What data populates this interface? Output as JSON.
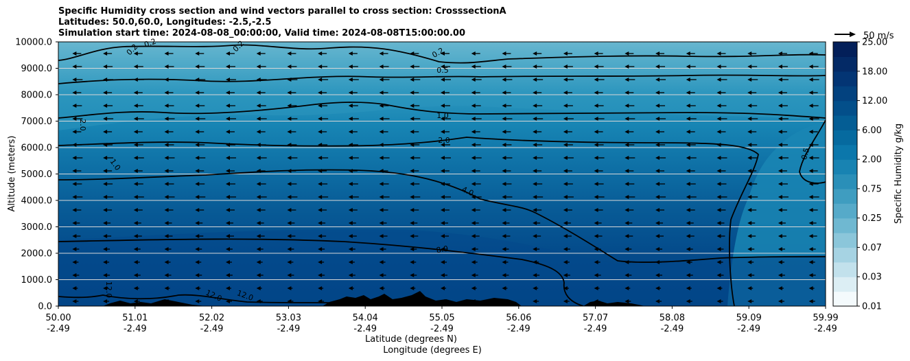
{
  "chart_data": {
    "type": "heatmap",
    "title_lines": [
      "Specific Humidity cross section and wind vectors parallel to cross section: CrosssectionA",
      "Latitudes: 50.0,60.0, Longitudes: -2.5,-2.5",
      "Simulation start time: 2024-08-08_00:00:00, Valid time: 2024-08-08T15:00:00.00"
    ],
    "xlabel_lat": "Latitude (degrees N)",
    "xlabel_lon": "Longitude (degrees E)",
    "ylabel": "Altitude (meters)",
    "colorbar_label": "Specific Humidity g/kg",
    "quiver_key_label": "50 m/s",
    "ylim": [
      0,
      10000
    ],
    "xlim": [
      50.0,
      59.99
    ],
    "y_ticks": [
      0,
      1000,
      2000,
      3000,
      4000,
      5000,
      6000,
      7000,
      8000,
      9000,
      10000
    ],
    "y_tick_labels": [
      "0.0",
      "1000.0",
      "2000.0",
      "3000.0",
      "4000.0",
      "5000.0",
      "6000.0",
      "7000.0",
      "8000.0",
      "9000.0",
      "10000.0"
    ],
    "x_ticks": [
      {
        "lat": "50.00",
        "lon": "-2.49"
      },
      {
        "lat": "51.01",
        "lon": "-2.49"
      },
      {
        "lat": "52.02",
        "lon": "-2.49"
      },
      {
        "lat": "53.03",
        "lon": "-2.49"
      },
      {
        "lat": "54.04",
        "lon": "-2.49"
      },
      {
        "lat": "55.05",
        "lon": "-2.49"
      },
      {
        "lat": "56.06",
        "lon": "-2.49"
      },
      {
        "lat": "57.07",
        "lon": "-2.49"
      },
      {
        "lat": "58.08",
        "lon": "-2.49"
      },
      {
        "lat": "59.09",
        "lon": "-2.49"
      },
      {
        "lat": "59.99",
        "lon": "-2.49"
      }
    ],
    "colorbar_levels": [
      0.01,
      0.02,
      0.03,
      0.05,
      0.07,
      0.1,
      0.25,
      0.5,
      0.75,
      1.0,
      2.0,
      4.0,
      6.0,
      8.0,
      12.0,
      15.0,
      18.0,
      21.0,
      25.0
    ],
    "colorbar_tick_labels": [
      "0.01",
      "0.03",
      "0.07",
      "0.25",
      "0.75",
      "2.00",
      "6.00",
      "12.00",
      "18.00",
      "25.00"
    ],
    "contour_labels": [
      "0.2",
      "0.2",
      "0.2",
      "0.2",
      "0.5",
      "1.0",
      "1.0",
      "2.0",
      "2.0",
      "4.0",
      "8.0",
      "12.0",
      "12.0",
      "12.0",
      "0.5"
    ],
    "colors": {
      "band_top": "#5fb0cb",
      "band_8000": "#3a9ec0",
      "band_6000": "#1a87b5",
      "band_4000": "#0d6aa0",
      "band_low": "#01488a",
      "terrain": "#000000",
      "gridline": "#d8d8d8"
    }
  }
}
